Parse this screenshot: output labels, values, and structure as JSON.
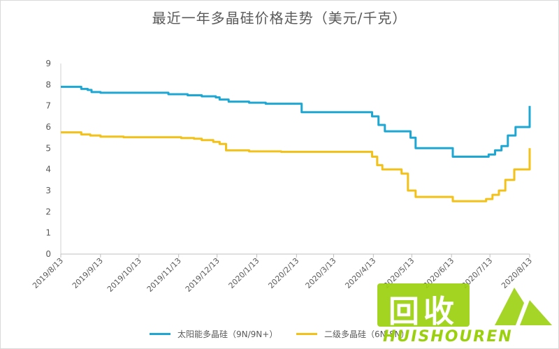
{
  "chart_data": {
    "type": "line",
    "title": "最近一年多晶硅价格走势（美元/千克）",
    "ylim": [
      0,
      9
    ],
    "yticks": [
      0,
      1,
      2,
      3,
      4,
      5,
      6,
      7,
      8,
      9
    ],
    "x_range": [
      "2019/8/13",
      "2020/8/13"
    ],
    "xticks": [
      "2019/8/13",
      "2019/9/13",
      "2019/10/13",
      "2019/11/13",
      "2019/12/13",
      "2020/1/13",
      "2020/2/13",
      "2020/3/13",
      "2020/4/13",
      "2020/5/13",
      "2020/6/13",
      "2020/7/13",
      "2020/8/13"
    ],
    "grid": false,
    "legend_position": "bottom",
    "series": [
      {
        "name": "太阳能多晶硅（9N/9N+）",
        "color": "#1fa7d4",
        "step": true,
        "points": [
          [
            "2019/8/13",
            7.9
          ],
          [
            "2019/8/27",
            7.9
          ],
          [
            "2019/8/29",
            7.8
          ],
          [
            "2019/9/3",
            7.75
          ],
          [
            "2019/9/6",
            7.65
          ],
          [
            "2019/9/13",
            7.62
          ],
          [
            "2019/10/13",
            7.62
          ],
          [
            "2019/11/1",
            7.62
          ],
          [
            "2019/11/5",
            7.55
          ],
          [
            "2019/11/20",
            7.5
          ],
          [
            "2019/12/1",
            7.45
          ],
          [
            "2019/12/12",
            7.4
          ],
          [
            "2019/12/15",
            7.3
          ],
          [
            "2019/12/22",
            7.2
          ],
          [
            "2020/1/7",
            7.15
          ],
          [
            "2020/1/20",
            7.1
          ],
          [
            "2020/2/15",
            7.1
          ],
          [
            "2020/2/17",
            6.7
          ],
          [
            "2020/4/10",
            6.7
          ],
          [
            "2020/4/12",
            6.5
          ],
          [
            "2020/4/17",
            6.1
          ],
          [
            "2020/4/22",
            5.8
          ],
          [
            "2020/5/8",
            5.8
          ],
          [
            "2020/5/12",
            5.5
          ],
          [
            "2020/5/16",
            5.0
          ],
          [
            "2020/6/1",
            5.0
          ],
          [
            "2020/6/13",
            5.0
          ],
          [
            "2020/6/14",
            4.6
          ],
          [
            "2020/7/8",
            4.6
          ],
          [
            "2020/7/12",
            4.7
          ],
          [
            "2020/7/17",
            4.9
          ],
          [
            "2020/7/22",
            5.1
          ],
          [
            "2020/7/27",
            5.6
          ],
          [
            "2020/8/2",
            6.0
          ],
          [
            "2020/8/9",
            6.0
          ],
          [
            "2020/8/13",
            7.0
          ]
        ]
      },
      {
        "name": "二级多晶硅（6N-8N）",
        "color": "#f2c11a",
        "step": true,
        "points": [
          [
            "2019/8/13",
            5.75
          ],
          [
            "2019/8/27",
            5.75
          ],
          [
            "2019/8/29",
            5.65
          ],
          [
            "2019/9/5",
            5.6
          ],
          [
            "2019/9/13",
            5.55
          ],
          [
            "2019/10/1",
            5.52
          ],
          [
            "2019/11/1",
            5.52
          ],
          [
            "2019/11/15",
            5.48
          ],
          [
            "2019/11/25",
            5.45
          ],
          [
            "2019/12/1",
            5.38
          ],
          [
            "2019/12/10",
            5.3
          ],
          [
            "2019/12/15",
            5.2
          ],
          [
            "2019/12/20",
            4.9
          ],
          [
            "2020/1/7",
            4.85
          ],
          [
            "2020/2/1",
            4.83
          ],
          [
            "2020/4/10",
            4.83
          ],
          [
            "2020/4/12",
            4.6
          ],
          [
            "2020/4/16",
            4.2
          ],
          [
            "2020/4/20",
            4.0
          ],
          [
            "2020/5/5",
            3.8
          ],
          [
            "2020/5/10",
            3.0
          ],
          [
            "2020/5/16",
            2.7
          ],
          [
            "2020/6/13",
            2.7
          ],
          [
            "2020/6/14",
            2.5
          ],
          [
            "2020/7/5",
            2.5
          ],
          [
            "2020/7/10",
            2.6
          ],
          [
            "2020/7/15",
            2.8
          ],
          [
            "2020/7/20",
            3.0
          ],
          [
            "2020/7/25",
            3.5
          ],
          [
            "2020/8/1",
            4.0
          ],
          [
            "2020/8/10",
            4.0
          ],
          [
            "2020/8/13",
            5.0
          ]
        ]
      }
    ]
  },
  "watermark": {
    "logo_text": "回收",
    "text": "HUISHOUREN"
  }
}
